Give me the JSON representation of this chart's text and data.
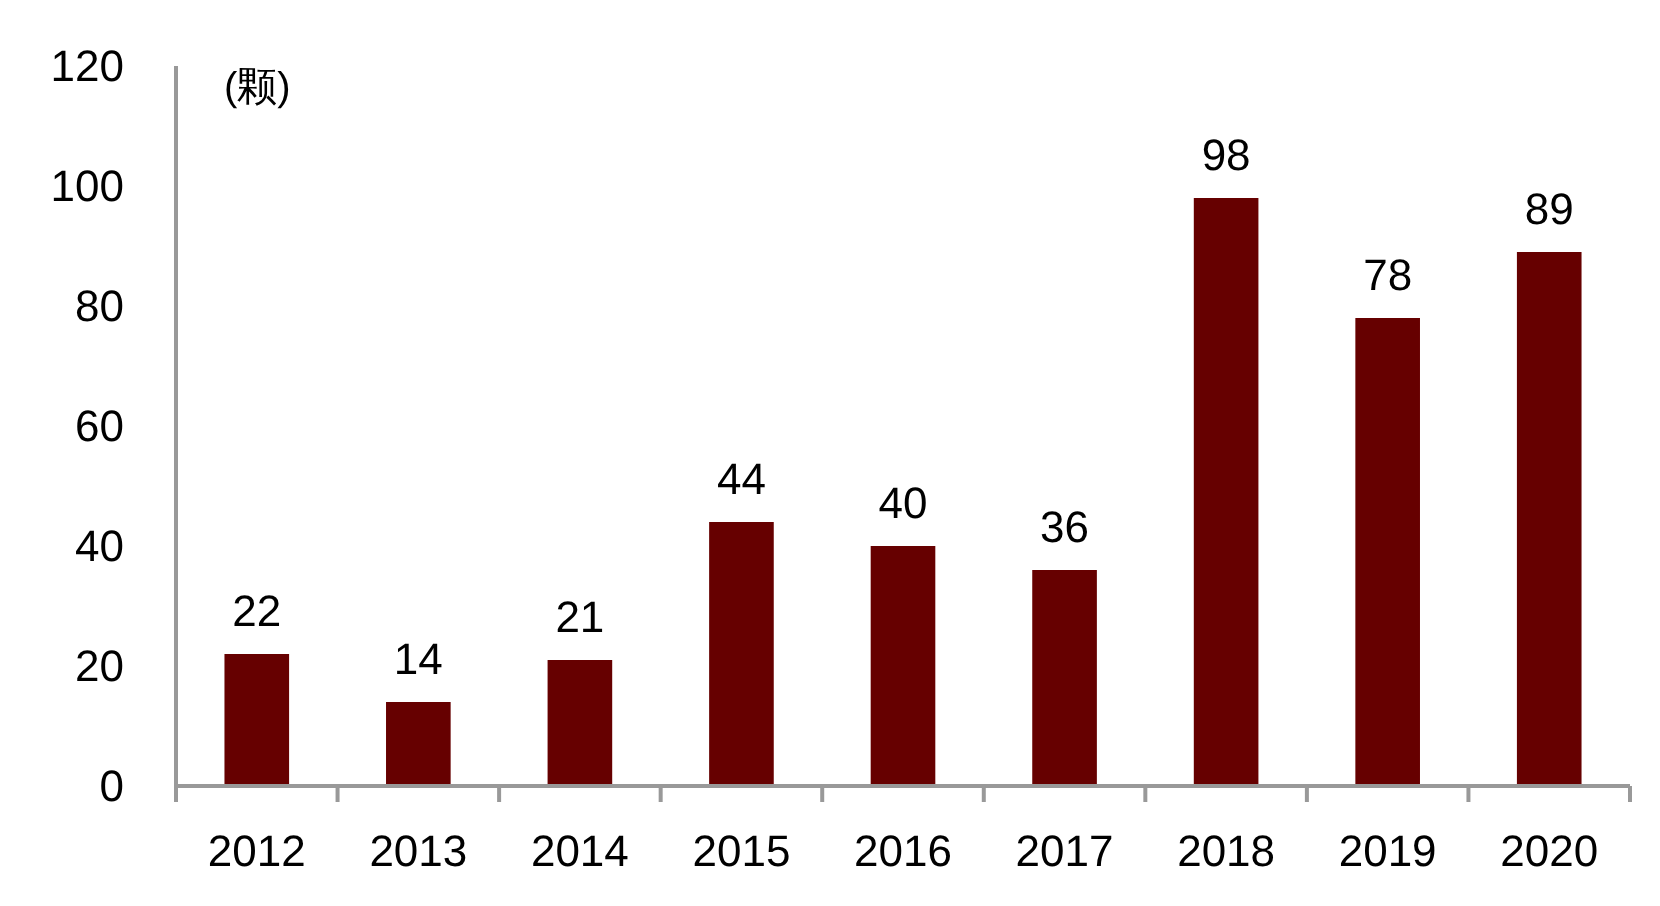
{
  "chart_data": {
    "type": "bar",
    "ylabel": "(颗)",
    "categories": [
      "2012",
      "2013",
      "2014",
      "2015",
      "2016",
      "2017",
      "2018",
      "2019",
      "2020"
    ],
    "values": [
      22,
      14,
      21,
      44,
      40,
      36,
      98,
      78,
      89
    ],
    "color": "#660000",
    "ylim": [
      0,
      120
    ],
    "yticks": [
      0,
      20,
      40,
      60,
      80,
      100,
      120
    ],
    "data_labels": true,
    "grid": false
  }
}
